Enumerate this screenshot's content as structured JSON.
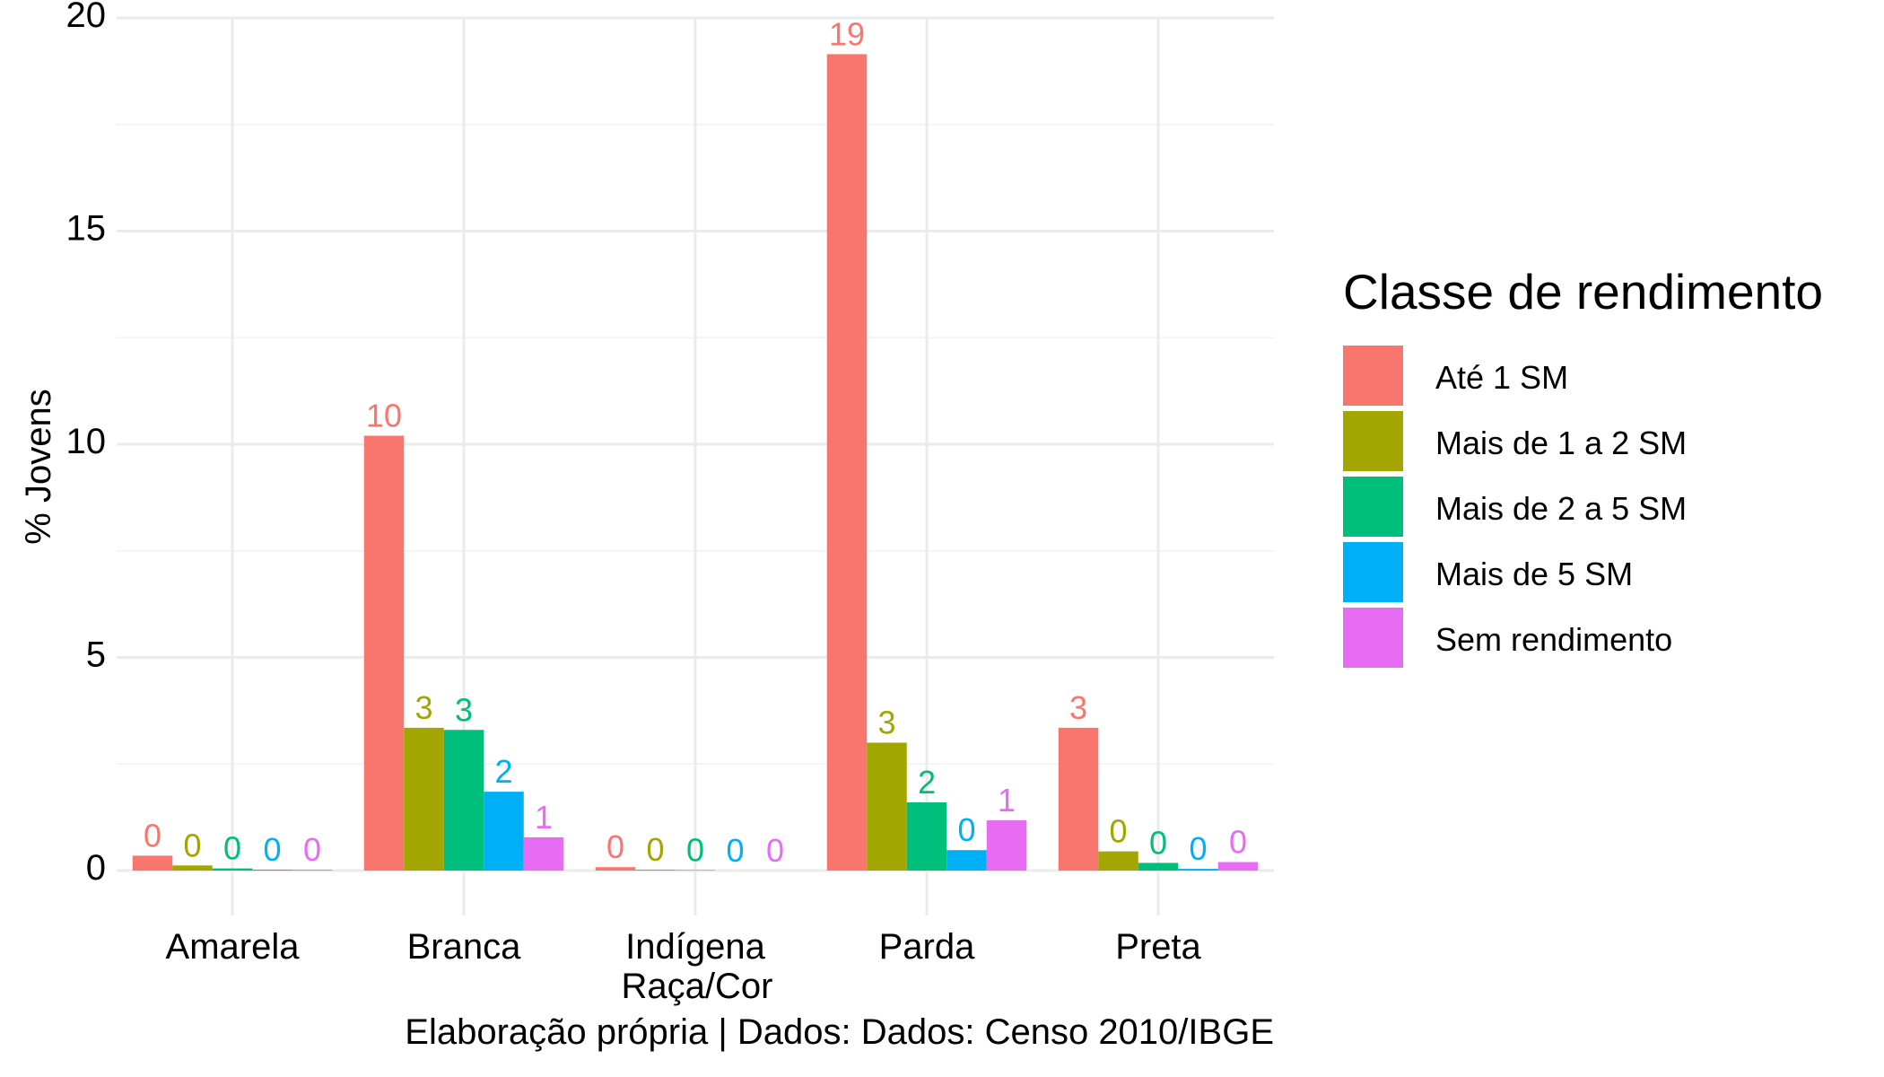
{
  "chart_data": {
    "type": "bar",
    "xlabel": "Raça/Cor",
    "ylabel": "% Jovens",
    "caption": "Elaboração própria | Dados: Dados: Censo 2010/IBGE",
    "ylim": [
      0,
      20
    ],
    "yticks": [
      0,
      5,
      10,
      15,
      20
    ],
    "grid": true,
    "legend_position": "right",
    "legend_title": "Classe de rendimento",
    "categories": [
      "Amarela",
      "Branca",
      "Indígena",
      "Parda",
      "Preta"
    ],
    "series": [
      {
        "name": "Até 1 SM",
        "color": "#F8766D",
        "values": [
          0.35,
          10.2,
          0.08,
          19.15,
          3.35
        ],
        "labels": [
          "0",
          "10",
          "0",
          "19",
          "3"
        ]
      },
      {
        "name": "Mais de 1 a 2 SM",
        "color": "#A3A500",
        "values": [
          0.12,
          3.35,
          0.02,
          3.0,
          0.45
        ],
        "labels": [
          "0",
          "3",
          "0",
          "3",
          "0"
        ]
      },
      {
        "name": "Mais de 2 a 5 SM",
        "color": "#00BF7D",
        "values": [
          0.05,
          3.3,
          0.01,
          1.6,
          0.18
        ],
        "labels": [
          "0",
          "3",
          "0",
          "2",
          "0"
        ]
      },
      {
        "name": "Mais de 5 SM",
        "color": "#00B0F6",
        "values": [
          0.02,
          1.85,
          0.0,
          0.48,
          0.04
        ],
        "labels": [
          "0",
          "2",
          "0",
          "0",
          "0"
        ]
      },
      {
        "name": "Sem rendimento",
        "color": "#E76BF3",
        "values": [
          0.02,
          0.78,
          0.0,
          1.18,
          0.2
        ],
        "labels": [
          "0",
          "1",
          "0",
          "1",
          "0"
        ]
      }
    ]
  }
}
